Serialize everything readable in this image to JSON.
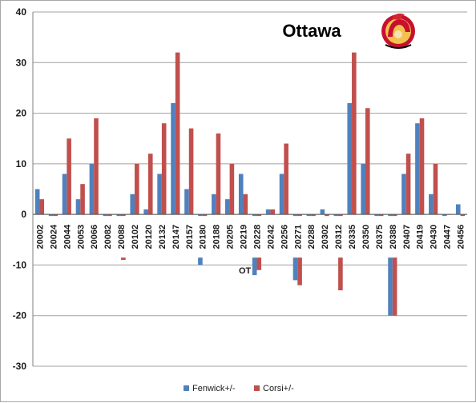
{
  "colors": {
    "fenwick": "#4F81BD",
    "corsi": "#C0504D",
    "grid": "#a0a0a0",
    "axis": "#7f7f7f"
  },
  "logo_icon": "senators-helmet-logo-icon",
  "chart_data": {
    "type": "bar",
    "title": "Ottawa",
    "xlabel": "",
    "ylabel": "",
    "ylim": [
      -30,
      40
    ],
    "yticks": [
      -30,
      -20,
      -10,
      0,
      10,
      20,
      30,
      40
    ],
    "grid": true,
    "legend_position": "bottom-center",
    "categories": [
      "20002",
      "20024",
      "20044",
      "20053",
      "20066",
      "20082",
      "20088",
      "20102",
      "20120",
      "20132",
      "20147",
      "20157",
      "20180",
      "20188",
      "20205",
      "20219",
      "20228",
      "20242",
      "20256",
      "20271",
      "20288",
      "20302",
      "20312",
      "20335",
      "20350",
      "20375",
      "20388",
      "20407",
      "20419",
      "20430",
      "20447",
      "20456"
    ],
    "series": [
      {
        "name": "Fenwick+/-",
        "values": [
          5,
          -1,
          8,
          3,
          10,
          -2,
          -2,
          4,
          1,
          8,
          22,
          5,
          -10,
          4,
          3,
          8,
          -12,
          1,
          8,
          -13,
          -8,
          1,
          -8,
          22,
          10,
          -7,
          -20,
          8,
          18,
          4,
          -2,
          2
        ]
      },
      {
        "name": "Corsi+/-",
        "values": [
          3,
          -3,
          15,
          6,
          19,
          -3,
          -9,
          10,
          12,
          18,
          32,
          17,
          -4,
          16,
          10,
          4,
          -11,
          1,
          14,
          -14,
          -7,
          -6,
          -15,
          32,
          21,
          -8,
          -20,
          12,
          19,
          10,
          0,
          -1
        ]
      }
    ],
    "annotations": [
      {
        "text": "OT",
        "category": "20228"
      }
    ]
  }
}
